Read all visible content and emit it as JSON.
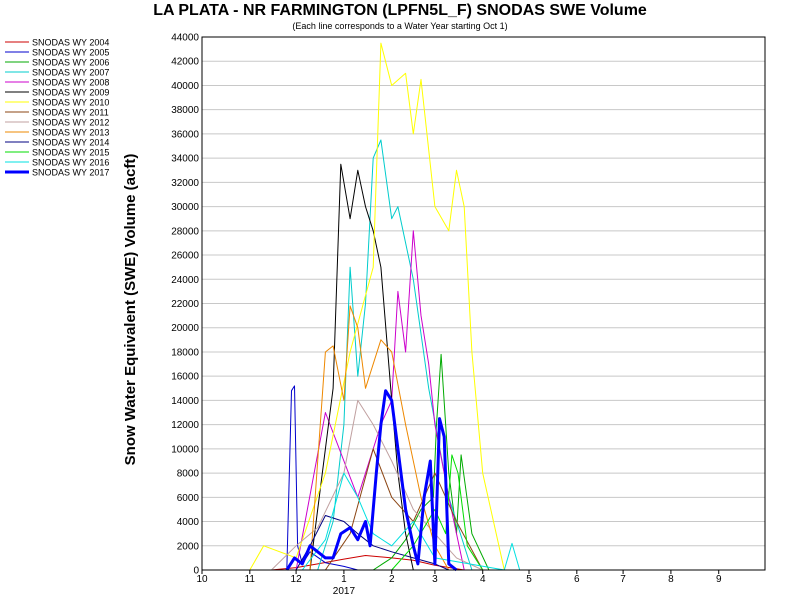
{
  "chart_data": {
    "type": "line",
    "title": "LA PLATA - NR FARMINGTON (LPFN5L_F) SNODAS SWE Volume",
    "subtitle": "(Each line corresponds to a Water Year starting Oct 1)",
    "ylabel": "Snow Water Equivalent (SWE) Volume (acft)",
    "xlabel": "",
    "year_label": "2017",
    "ylim": [
      0,
      44000
    ],
    "yticks": [
      0,
      2000,
      4000,
      6000,
      8000,
      10000,
      12000,
      14000,
      16000,
      18000,
      20000,
      22000,
      24000,
      26000,
      28000,
      30000,
      32000,
      34000,
      36000,
      38000,
      40000,
      42000,
      44000
    ],
    "xlim": [
      "2016-10-01",
      "2017-09-30"
    ],
    "x_tick_labels": [
      "10",
      "11",
      "12",
      "1",
      "2",
      "3",
      "4",
      "5",
      "6",
      "7",
      "8",
      "9"
    ],
    "x_tick_dates": [
      "2016-10-01",
      "2016-11-01",
      "2016-12-01",
      "2017-01-01",
      "2017-02-01",
      "2017-03-01",
      "2017-04-01",
      "2017-05-01",
      "2017-06-01",
      "2017-07-01",
      "2017-08-01",
      "2017-09-01"
    ],
    "grid": true,
    "legend_position": "left",
    "series": [
      {
        "name": "SNODAS WY 2004",
        "color": "#cc0000",
        "width": 1,
        "x": [
          "2016-11-15",
          "2016-12-01",
          "2016-12-15",
          "2017-01-01",
          "2017-01-15",
          "2017-02-01",
          "2017-02-15",
          "2017-03-01",
          "2017-03-20"
        ],
        "y": [
          0,
          200,
          500,
          900,
          1200,
          1000,
          800,
          400,
          0
        ]
      },
      {
        "name": "SNODAS WY 2005",
        "color": "#0000cc",
        "width": 1,
        "x": [
          "2016-11-25",
          "2016-11-28",
          "2016-11-30",
          "2016-12-02",
          "2016-12-05",
          "2016-12-10",
          "2016-12-20",
          "2017-01-01",
          "2017-01-10"
        ],
        "y": [
          0,
          14800,
          15200,
          2000,
          500,
          1500,
          600,
          300,
          0
        ]
      },
      {
        "name": "SNODAS WY 2006",
        "color": "#00aa00",
        "width": 1,
        "x": [
          "2017-01-20",
          "2017-02-01",
          "2017-02-10",
          "2017-02-20",
          "2017-02-28",
          "2017-03-02",
          "2017-03-05",
          "2017-03-10",
          "2017-03-15",
          "2017-03-18",
          "2017-03-25",
          "2017-04-05"
        ],
        "y": [
          0,
          1000,
          2500,
          5000,
          6000,
          12000,
          17800,
          8000,
          3000,
          9500,
          3000,
          0
        ]
      },
      {
        "name": "SNODAS WY 2007",
        "color": "#00cccc",
        "width": 1,
        "x": [
          "2016-12-15",
          "2016-12-25",
          "2017-01-01",
          "2017-01-05",
          "2017-01-10",
          "2017-01-15",
          "2017-01-20",
          "2017-01-25",
          "2017-02-01",
          "2017-02-05",
          "2017-02-15",
          "2017-02-25",
          "2017-03-10",
          "2017-03-25"
        ],
        "y": [
          0,
          4000,
          12000,
          25000,
          16000,
          22000,
          34000,
          35500,
          29000,
          30000,
          24000,
          15000,
          6000,
          0
        ]
      },
      {
        "name": "SNODAS WY 2008",
        "color": "#cc00cc",
        "width": 1,
        "x": [
          "2016-12-01",
          "2016-12-20",
          "2017-01-10",
          "2017-01-25",
          "2017-02-01",
          "2017-02-05",
          "2017-02-10",
          "2017-02-15",
          "2017-02-20",
          "2017-02-25",
          "2017-03-01",
          "2017-03-10",
          "2017-03-20"
        ],
        "y": [
          0,
          13000,
          6000,
          12000,
          14000,
          23000,
          18000,
          28000,
          21000,
          17000,
          12000,
          6000,
          0
        ]
      },
      {
        "name": "SNODAS WY 2009",
        "color": "#000000",
        "width": 1,
        "x": [
          "2016-12-10",
          "2016-12-25",
          "2016-12-30",
          "2017-01-05",
          "2017-01-10",
          "2017-01-15",
          "2017-01-20",
          "2017-01-25",
          "2017-02-01",
          "2017-02-05",
          "2017-02-10",
          "2017-02-15"
        ],
        "y": [
          0,
          15000,
          33500,
          29000,
          33000,
          30000,
          28000,
          25000,
          14000,
          8000,
          3000,
          0
        ]
      },
      {
        "name": "SNODAS WY 2010",
        "color": "#ffff00",
        "width": 1,
        "x": [
          "2016-11-01",
          "2016-11-10",
          "2016-12-01",
          "2016-12-20",
          "2017-01-05",
          "2017-01-20",
          "2017-01-25",
          "2017-02-01",
          "2017-02-10",
          "2017-02-15",
          "2017-02-20",
          "2017-03-01",
          "2017-03-10",
          "2017-03-15",
          "2017-03-20",
          "2017-03-25",
          "2017-04-01",
          "2017-04-15"
        ],
        "y": [
          0,
          2000,
          1000,
          8000,
          18000,
          25000,
          43500,
          40000,
          41000,
          36000,
          40500,
          30000,
          28000,
          33000,
          30000,
          18000,
          8000,
          0
        ]
      },
      {
        "name": "SNODAS WY 2011",
        "color": "#8b4513",
        "width": 1,
        "x": [
          "2016-12-20",
          "2017-01-05",
          "2017-01-20",
          "2017-02-01",
          "2017-02-15",
          "2017-03-01",
          "2017-03-15",
          "2017-04-01"
        ],
        "y": [
          0,
          3000,
          10000,
          6000,
          4000,
          8000,
          4000,
          0
        ]
      },
      {
        "name": "SNODAS WY 2012",
        "color": "#c0a0a0",
        "width": 1,
        "x": [
          "2016-11-15",
          "2016-12-01",
          "2016-12-15",
          "2017-01-01",
          "2017-01-10",
          "2017-01-20",
          "2017-02-01",
          "2017-02-15",
          "2017-03-01",
          "2017-03-15",
          "2017-04-01"
        ],
        "y": [
          0,
          2000,
          3500,
          8000,
          14000,
          12000,
          9000,
          5000,
          3000,
          1000,
          0
        ]
      },
      {
        "name": "SNODAS WY 2013",
        "color": "#ee8800",
        "width": 1,
        "x": [
          "2016-12-10",
          "2016-12-20",
          "2016-12-25",
          "2017-01-01",
          "2017-01-05",
          "2017-01-10",
          "2017-01-15",
          "2017-01-25",
          "2017-02-01",
          "2017-02-10",
          "2017-02-20",
          "2017-03-01",
          "2017-03-10"
        ],
        "y": [
          0,
          18000,
          18500,
          14000,
          21800,
          20000,
          15000,
          19000,
          18000,
          12000,
          6000,
          2000,
          0
        ]
      },
      {
        "name": "SNODAS WY 2014",
        "color": "#000080",
        "width": 1,
        "x": [
          "2016-12-01",
          "2016-12-10",
          "2016-12-20",
          "2017-01-01",
          "2017-01-10",
          "2017-01-20",
          "2017-02-01",
          "2017-02-15",
          "2017-03-01",
          "2017-03-10"
        ],
        "y": [
          0,
          2000,
          4500,
          4000,
          3000,
          2000,
          1500,
          1000,
          500,
          0
        ]
      },
      {
        "name": "SNODAS WY 2015",
        "color": "#00dd00",
        "width": 1,
        "x": [
          "2017-02-01",
          "2017-02-15",
          "2017-03-01",
          "2017-03-08",
          "2017-03-12",
          "2017-03-16",
          "2017-03-22",
          "2017-04-01"
        ],
        "y": [
          0,
          2000,
          5000,
          3000,
          9500,
          8000,
          2000,
          0
        ]
      },
      {
        "name": "SNODAS WY 2016",
        "color": "#00e0e0",
        "width": 1,
        "x": [
          "2016-12-05",
          "2016-12-20",
          "2017-01-01",
          "2017-01-10",
          "2017-01-20",
          "2017-02-01",
          "2017-02-15",
          "2017-03-01",
          "2017-04-15",
          "2017-04-20",
          "2017-04-25"
        ],
        "y": [
          0,
          2500,
          8000,
          6000,
          3000,
          2000,
          4000,
          1000,
          0,
          2200,
          0
        ]
      },
      {
        "name": "SNODAS WY 2017",
        "color": "#0000ff",
        "width": 3,
        "x": [
          "2016-11-25",
          "2016-11-30",
          "2016-12-05",
          "2016-12-10",
          "2016-12-15",
          "2016-12-20",
          "2016-12-25",
          "2016-12-30",
          "2017-01-05",
          "2017-01-10",
          "2017-01-15",
          "2017-01-18",
          "2017-01-22",
          "2017-01-25",
          "2017-01-28",
          "2017-02-01",
          "2017-02-05",
          "2017-02-10",
          "2017-02-15",
          "2017-02-18",
          "2017-02-22",
          "2017-02-26",
          "2017-03-01",
          "2017-03-04",
          "2017-03-07",
          "2017-03-10",
          "2017-03-15"
        ],
        "y": [
          0,
          1000,
          500,
          2000,
          1500,
          1000,
          1000,
          3000,
          3500,
          2500,
          4000,
          2000,
          8000,
          12000,
          14800,
          14000,
          10000,
          5000,
          2000,
          500,
          6000,
          9000,
          500,
          12500,
          11000,
          500,
          0
        ]
      }
    ]
  }
}
